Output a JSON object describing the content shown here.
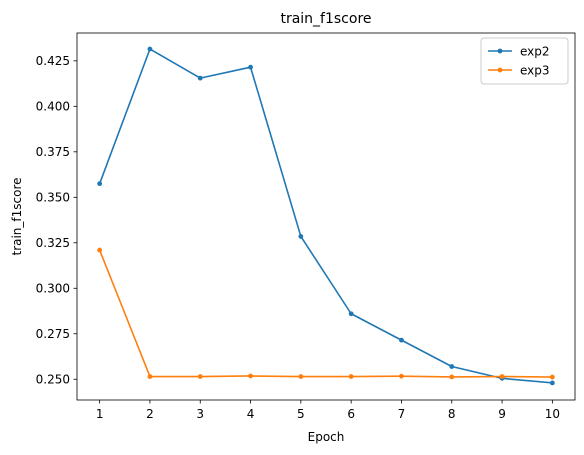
{
  "chart_data": {
    "type": "line",
    "title": "train_f1score",
    "xlabel": "Epoch",
    "ylabel": "train_f1score",
    "x": [
      1,
      2,
      3,
      4,
      5,
      6,
      7,
      8,
      9,
      10
    ],
    "x_ticks": [
      "1",
      "2",
      "3",
      "4",
      "5",
      "6",
      "7",
      "8",
      "9",
      "10"
    ],
    "xlim": [
      0.55,
      10.45
    ],
    "ylim": [
      0.2386,
      0.4403
    ],
    "y_ticks": [
      0.25,
      0.275,
      0.3,
      0.325,
      0.35,
      0.375,
      0.4,
      0.425
    ],
    "y_tick_labels": [
      "0.250",
      "0.275",
      "0.300",
      "0.325",
      "0.350",
      "0.375",
      "0.400",
      "0.425"
    ],
    "grid": false,
    "legend_position": "top-right",
    "series": [
      {
        "name": "exp2",
        "color": "#1f77b4",
        "marker": "circle",
        "values": [
          0.3575,
          0.4315,
          0.4155,
          0.4215,
          0.3285,
          0.286,
          0.2715,
          0.257,
          0.2505,
          0.248
        ]
      },
      {
        "name": "exp3",
        "color": "#ff7f0e",
        "marker": "circle",
        "values": [
          0.321,
          0.2515,
          0.2515,
          0.2518,
          0.2515,
          0.2515,
          0.2517,
          0.2513,
          0.2515,
          0.2512
        ]
      }
    ]
  }
}
